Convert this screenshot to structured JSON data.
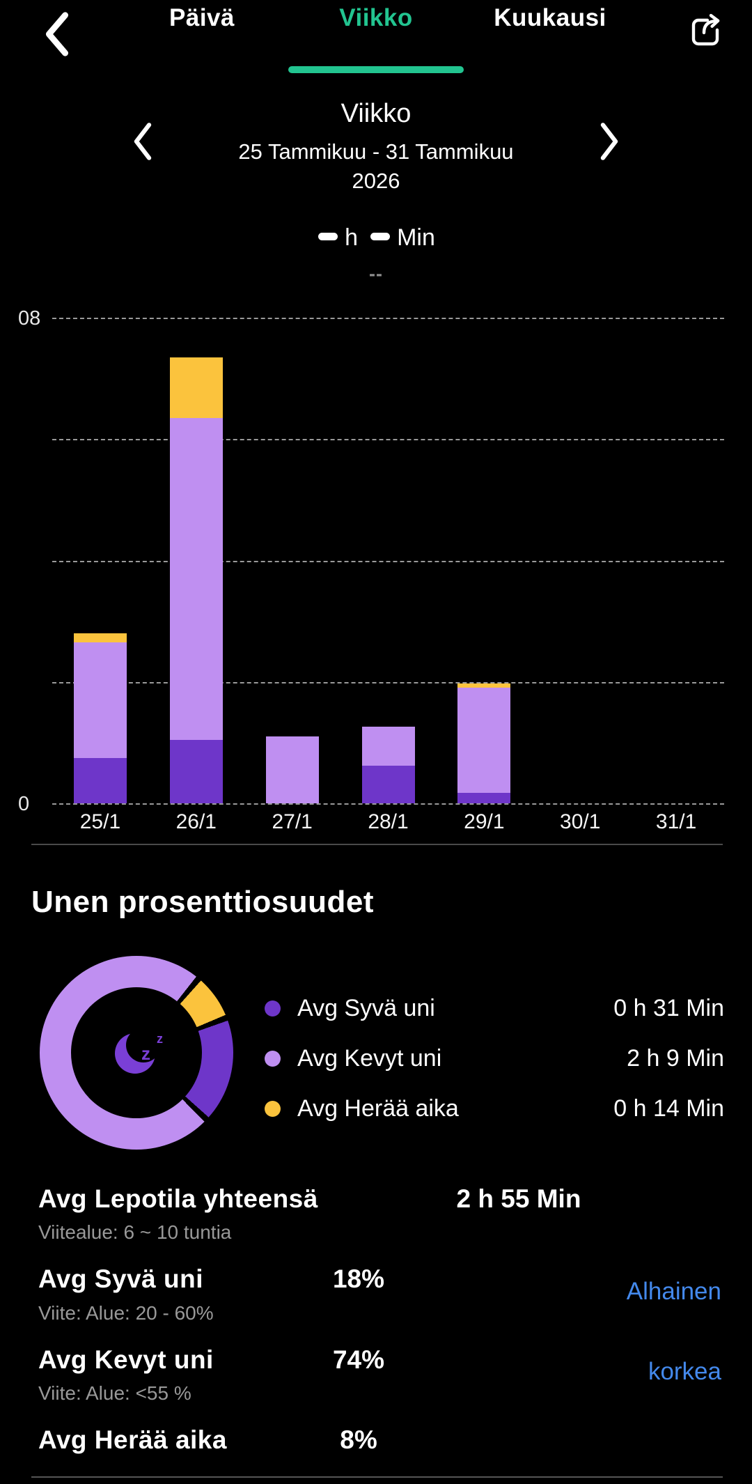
{
  "topbar": {
    "tabs": [
      {
        "label": "Päivä"
      },
      {
        "label": "Viikko"
      },
      {
        "label": "Kuukausi"
      }
    ],
    "active_tab": "Viikko"
  },
  "week_nav": {
    "title": "Viikko",
    "range": "25 Tammikuu - 31 Tammikuu",
    "year": "2026"
  },
  "summary": {
    "hours_unit": "h",
    "minutes_unit": "Min",
    "empty_value": "--"
  },
  "chart": {
    "y_top": "08",
    "y_bottom": "0"
  },
  "chart_data": {
    "type": "bar",
    "stacked": true,
    "title": "Weekly sleep hours per day (stacked: deep / light / awake)",
    "categories": [
      "25/1",
      "26/1",
      "27/1",
      "28/1",
      "29/1",
      "30/1",
      "31/1"
    ],
    "series": [
      {
        "name": "Syvä uni",
        "color": "#6e36c9",
        "values": [
          0.75,
          1.05,
          0,
          0.62,
          0.17,
          0,
          0
        ]
      },
      {
        "name": "Kevyt uni",
        "color": "#bf8ff1",
        "values": [
          1.9,
          5.3,
          1.1,
          0.64,
          1.74,
          0,
          0
        ]
      },
      {
        "name": "Herää aika",
        "color": "#fbc33d",
        "values": [
          0.15,
          1.0,
          0,
          0,
          0.06,
          0,
          0
        ]
      }
    ],
    "ylim": [
      0,
      8
    ],
    "y_tick_labels_shown": [
      "08",
      "0"
    ],
    "gridlines": "horizontal dashed every 2h",
    "legend_position": "below, next to donut"
  },
  "section": {
    "title": "Unen prosenttiosuudet"
  },
  "donut": {
    "start_angle_deg": 40,
    "gap_percent": 1.0,
    "segments": [
      {
        "name": "Herää aika",
        "percent": 8,
        "color": "#fbc33d"
      },
      {
        "name": "Syvä uni",
        "percent": 18,
        "color": "#6e36c9"
      },
      {
        "name": "Kevyt uni",
        "percent": 74,
        "color": "#bf8ff1"
      }
    ],
    "center_icon": "sleeping-moon"
  },
  "legend": {
    "rows": [
      {
        "label": "Avg Syvä uni",
        "value": "0 h 31 Min",
        "color": "#6e36c9"
      },
      {
        "label": "Avg Kevyt uni",
        "value": "2 h 9 Min",
        "color": "#bf8ff1"
      },
      {
        "label": "Avg Herää aika",
        "value": "0 h 14 Min",
        "color": "#fbc33d"
      }
    ]
  },
  "stats": {
    "rows": [
      {
        "label": "Avg Lepotila yhteensä",
        "value": "2 h 55 Min",
        "ref": "Viitealue: 6 ~ 10 tuntia",
        "status": ""
      },
      {
        "label": "Avg Syvä uni",
        "value": "18%",
        "ref": "Viite: Alue: 20 - 60%",
        "status": "Alhainen"
      },
      {
        "label": "Avg Kevyt uni",
        "value": "74%",
        "ref": "Viite: Alue: <55 %",
        "status": "korkea"
      },
      {
        "label": "Avg Herää aika",
        "value": "8%",
        "ref": "",
        "status": ""
      }
    ]
  },
  "colors": {
    "accent_teal": "#22c490",
    "deep_sleep": "#6e36c9",
    "light_sleep": "#bf8ff1",
    "awake": "#fbc33d",
    "status_blue": "#4489ec",
    "background": "#000000"
  }
}
